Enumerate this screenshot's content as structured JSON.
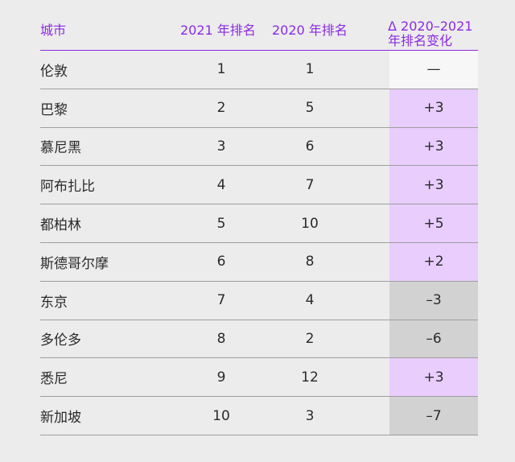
{
  "header": {
    "city": "城市",
    "rank2021": "2021 年排名",
    "rank2020": "2020 年排名",
    "delta_line1": "Δ 2020–2021",
    "delta_line2": "年排名变化"
  },
  "rows": [
    {
      "city": "伦敦",
      "rank2021": "1",
      "rank2020": "1",
      "delta": "—",
      "trend": "none"
    },
    {
      "city": "巴黎",
      "rank2021": "2",
      "rank2020": "5",
      "delta": "+3",
      "trend": "up"
    },
    {
      "city": "慕尼黑",
      "rank2021": "3",
      "rank2020": "6",
      "delta": "+3",
      "trend": "up"
    },
    {
      "city": "阿布扎比",
      "rank2021": "4",
      "rank2020": "7",
      "delta": "+3",
      "trend": "up"
    },
    {
      "city": "都柏林",
      "rank2021": "5",
      "rank2020": "10",
      "delta": "+5",
      "trend": "up"
    },
    {
      "city": "斯德哥尔摩",
      "rank2021": "6",
      "rank2020": "8",
      "delta": "+2",
      "trend": "up"
    },
    {
      "city": "东京",
      "rank2021": "7",
      "rank2020": "4",
      "delta": "–3",
      "trend": "down"
    },
    {
      "city": "多伦多",
      "rank2021": "8",
      "rank2020": "2",
      "delta": "–6",
      "trend": "down"
    },
    {
      "city": "悉尼",
      "rank2021": "9",
      "rank2020": "12",
      "delta": "+3",
      "trend": "up"
    },
    {
      "city": "新加坡",
      "rank2021": "10",
      "rank2020": "3",
      "delta": "–7",
      "trend": "down"
    }
  ],
  "colors": {
    "accent": "#8a2be2",
    "increase_bg": "#e8cdfd",
    "decrease_bg": "#d2d2d2",
    "unchanged_bg": "#f7f7f7"
  }
}
